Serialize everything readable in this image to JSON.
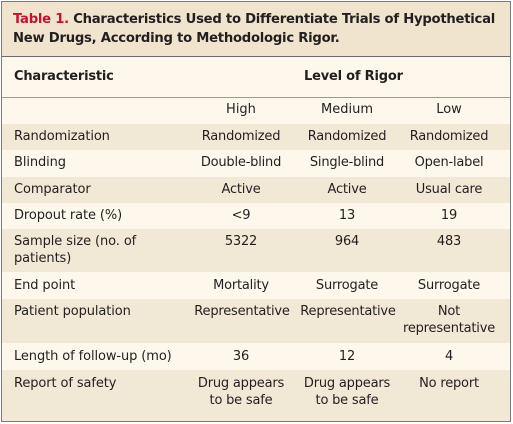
{
  "table": {
    "title_number": "Table 1.",
    "title_text": "Characteristics Used to Differentiate Trials of Hypothetical New Drugs, According to Methodologic Rigor.",
    "header": {
      "characteristic": "Characteristic",
      "level_of_rigor": "Level of Rigor",
      "levels": [
        "High",
        "Medium",
        "Low"
      ]
    },
    "rows": [
      {
        "label": "Randomization",
        "values": [
          "Randomized",
          "Randomized",
          "Randomized"
        ]
      },
      {
        "label": "Blinding",
        "values": [
          "Double-blind",
          "Single-blind",
          "Open-label"
        ]
      },
      {
        "label": "Comparator",
        "values": [
          "Active",
          "Active",
          "Usual care"
        ]
      },
      {
        "label": "Dropout rate (%)",
        "values": [
          "<9",
          "13",
          "19"
        ]
      },
      {
        "label": "Sample size (no. of patients)",
        "values": [
          "5322",
          "964",
          "483"
        ]
      },
      {
        "label": "End point",
        "values": [
          "Mortality",
          "Surrogate",
          "Surrogate"
        ]
      },
      {
        "label": "Patient population",
        "values": [
          "Representative",
          "Representative",
          "Not representative"
        ]
      },
      {
        "label": "Length of follow-up (mo)",
        "values": [
          "36",
          "12",
          "4"
        ]
      },
      {
        "label": "Report of safety",
        "values": [
          "Drug appears to be safe",
          "Drug appears to be safe",
          "No report"
        ]
      }
    ]
  },
  "colors": {
    "title_number": "#c8102e",
    "title_background": "#f0e4cf",
    "body_background": "#fdf7ec",
    "shaded_row": "#f2e8d6"
  }
}
